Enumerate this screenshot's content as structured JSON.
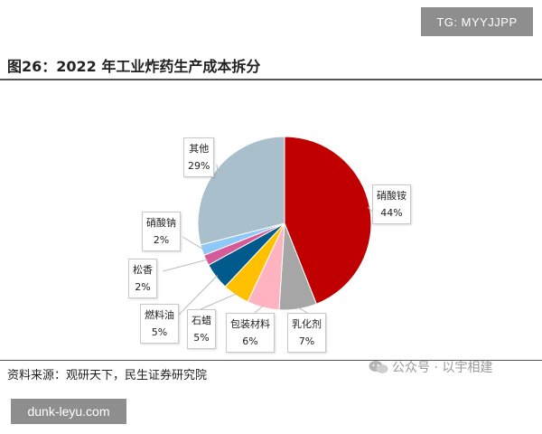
{
  "watermark_top": "TG: MYYJJPP",
  "watermark_bottom": "dunk-leyu.com",
  "wechat_text": "公众号 · 以宇相建",
  "source": "资料来源：观研天下，民生证券研究院",
  "chart_data": {
    "type": "pie",
    "title": "图26：2022 年工业炸药生产成本拆分",
    "start_angle_deg": 0,
    "direction": "clockwise",
    "slices": [
      {
        "name": "硝酸铵",
        "value": 44,
        "label": "44%",
        "color": "#c00000"
      },
      {
        "name": "乳化剂",
        "value": 7,
        "label": "7%",
        "color": "#a6a6a6"
      },
      {
        "name": "包装材料",
        "value": 6,
        "label": "6%",
        "color": "#ffb3c1"
      },
      {
        "name": "石蜡",
        "value": 5,
        "label": "5%",
        "color": "#ffc000"
      },
      {
        "name": "燃料油",
        "value": 5,
        "label": "5%",
        "color": "#005a8c"
      },
      {
        "name": "松香",
        "value": 2,
        "label": "2%",
        "color": "#d45a9a"
      },
      {
        "name": "硝酸钠",
        "value": 2,
        "label": "2%",
        "color": "#8ec8f8"
      },
      {
        "name": "其他",
        "value": 29,
        "label": "29%",
        "color": "#a9bfcc"
      }
    ]
  }
}
